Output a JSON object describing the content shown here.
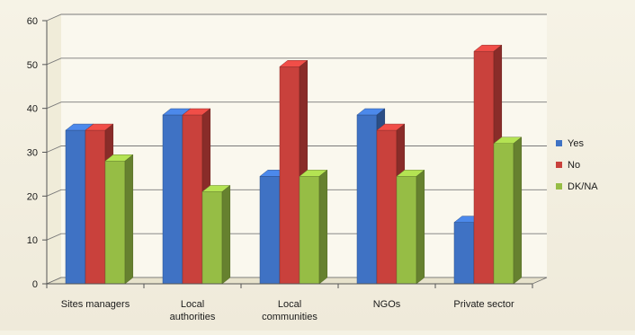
{
  "chart_data": {
    "type": "bar",
    "categories": [
      "Sites managers",
      "Local authorities",
      "Local communities",
      "NGOs",
      "Private sector"
    ],
    "category_lines": [
      [
        "Sites managers"
      ],
      [
        "Local",
        "authorities"
      ],
      [
        "Local",
        "communities"
      ],
      [
        "NGOs"
      ],
      [
        "Private sector"
      ]
    ],
    "series": [
      {
        "name": "Yes",
        "values": [
          35,
          38.5,
          24.5,
          38.5,
          14
        ],
        "color": "#3f72c4"
      },
      {
        "name": "No",
        "values": [
          35,
          38.5,
          49.5,
          35,
          53
        ],
        "color": "#c9413c"
      },
      {
        "name": "DK/NA",
        "values": [
          28,
          21,
          24.5,
          24.5,
          32
        ],
        "color": "#96bd45"
      }
    ],
    "ylim": [
      0,
      60
    ],
    "yticks": [
      0,
      10,
      20,
      30,
      40,
      50,
      60
    ],
    "grid": true,
    "legend_position": "right",
    "title": "",
    "xlabel": "",
    "ylabel": ""
  }
}
